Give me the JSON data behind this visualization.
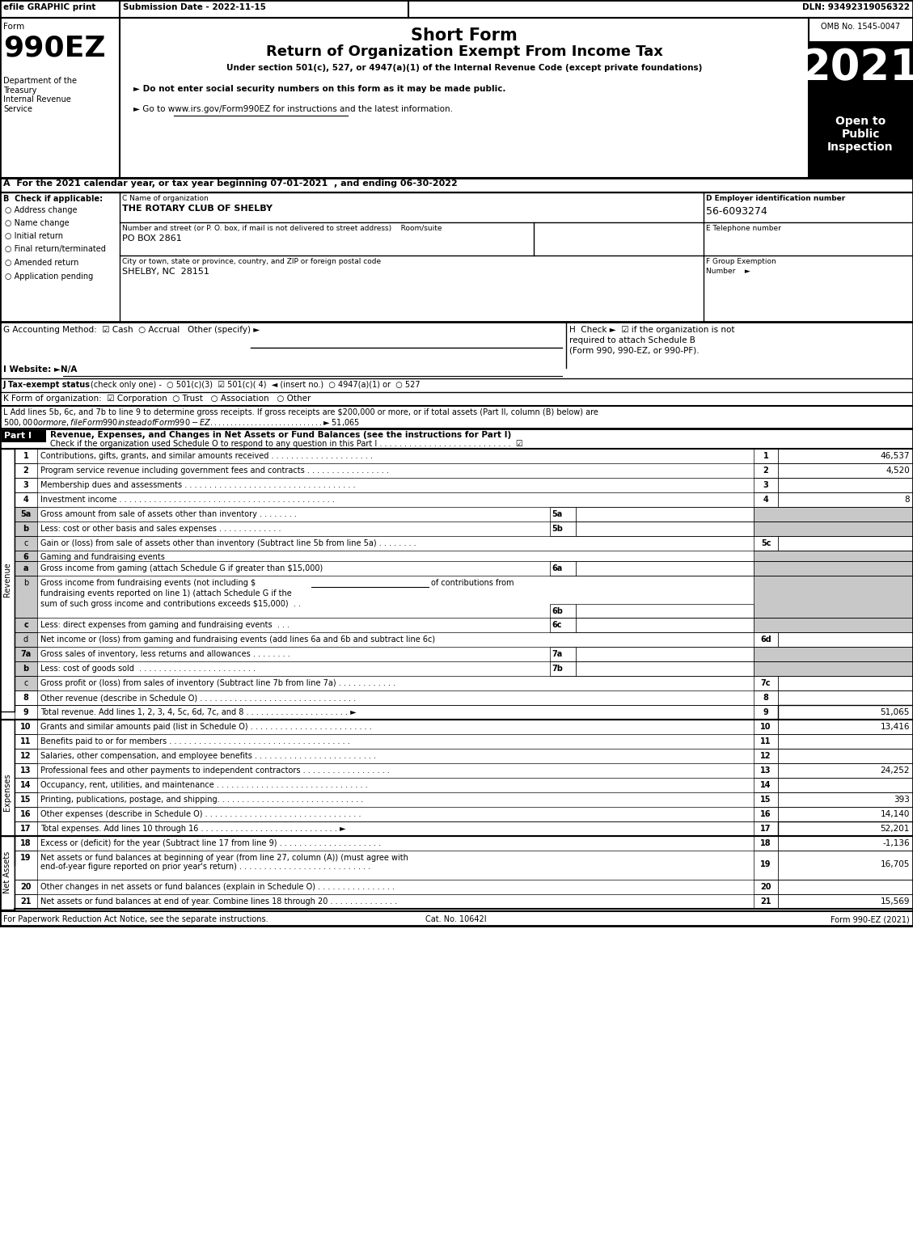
{
  "title_short": "Short Form",
  "title_main": "Return of Organization Exempt From Income Tax",
  "subtitle": "Under section 501(c), 527, or 4947(a)(1) of the Internal Revenue Code (except private foundations)",
  "year": "2021",
  "omb": "OMB No. 1545-0047",
  "form_number": "990EZ",
  "efile_text": "efile GRAPHIC print",
  "submission_date": "Submission Date - 2022-11-15",
  "dln": "DLN: 93492319056322",
  "open_to": "Open to\nPublic\nInspection",
  "dept_text": "Department of the\nTreasury\nInternal Revenue\nService",
  "bullet1": "► Do not enter social security numbers on this form as it may be made public.",
  "bullet2": "► Go to www.irs.gov/Form990EZ for instructions and the latest information.",
  "section_a": "A  For the 2021 calendar year, or tax year beginning 07-01-2021  , and ending 06-30-2022",
  "checkboxes_b": [
    "Address change",
    "Name change",
    "Initial return",
    "Final return/terminated",
    "Amended return",
    "Application pending"
  ],
  "org_name": "THE ROTARY CLUB OF SHELBY",
  "address": "PO BOX 2861",
  "city": "SHELBY, NC  28151",
  "ein": "56-6093274",
  "section_l": "L Add lines 5b, 6c, and 7b to line 9 to determine gross receipts. If gross receipts are $200,000 or more, or if total assets (Part II, column (B) below) are\n$500,000 or more, file Form 990 instead of Form 990-EZ . . . . . . . . . . . . . . . . . . . . . . . . . . . .   ► $ 51,065",
  "part1_heading": "Revenue, Expenses, and Changes in Net Assets or Fund Balances (see the instructions for Part I)",
  "part1_check": "Check if the organization used Schedule O to respond to any question in this Part I . . . . . . . . . . . . . . . . . . . . . . . . . . .",
  "footer_left": "For Paperwork Reduction Act Notice, see the separate instructions.",
  "footer_center": "Cat. No. 10642I",
  "footer_right": "Form 990-EZ (2021)",
  "gray_color": "#c8c8c8",
  "black": "#000000",
  "white": "#ffffff"
}
